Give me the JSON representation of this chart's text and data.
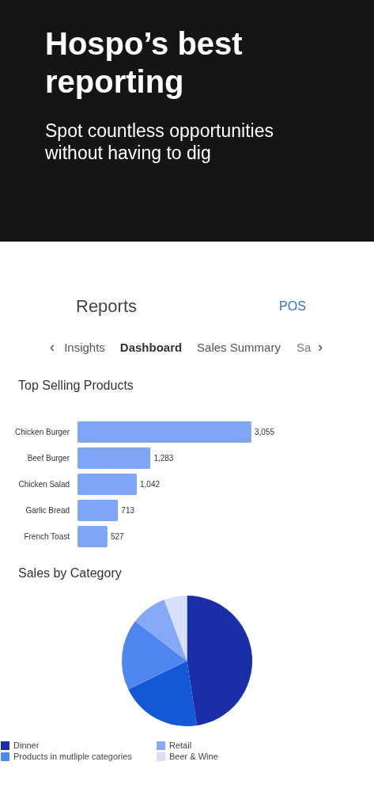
{
  "chart_data": [
    {
      "type": "other",
      "title": "Hospo’s best reporting",
      "subtitle": "Spot countless opportunities without having to dig",
      "annotations": [
        "Reports",
        "POS",
        "‹",
        "Insights",
        "Dashboard",
        "Sales Summary",
        "Sa",
        "›"
      ]
    },
    {
      "type": "bar",
      "orientation": "horizontal",
      "title": "Top Selling Products",
      "categories": [
        "Chicken Burger",
        "Beef Burger",
        "Chicken Salad",
        "Garlic Bread",
        "French Toast"
      ],
      "values": [
        3055,
        1283,
        1042,
        713,
        527
      ],
      "value_labels": [
        "3,055",
        "1,283",
        "1,042",
        "713",
        "527"
      ],
      "color": "#7fa6f5"
    },
    {
      "type": "pie",
      "title": "Sales by Category",
      "categories": [
        "Dinner",
        null,
        "Products in mutliple categories",
        "Retail",
        "Beer & Wine"
      ],
      "values": [
        47.6,
        20.2,
        17.6,
        8.9,
        5.7
      ],
      "colors": [
        "#1a2ea8",
        "#1458d8",
        "#4f86ef",
        "#86a9f5",
        "#d6e0fb"
      ],
      "legend": "bottom"
    }
  ]
}
